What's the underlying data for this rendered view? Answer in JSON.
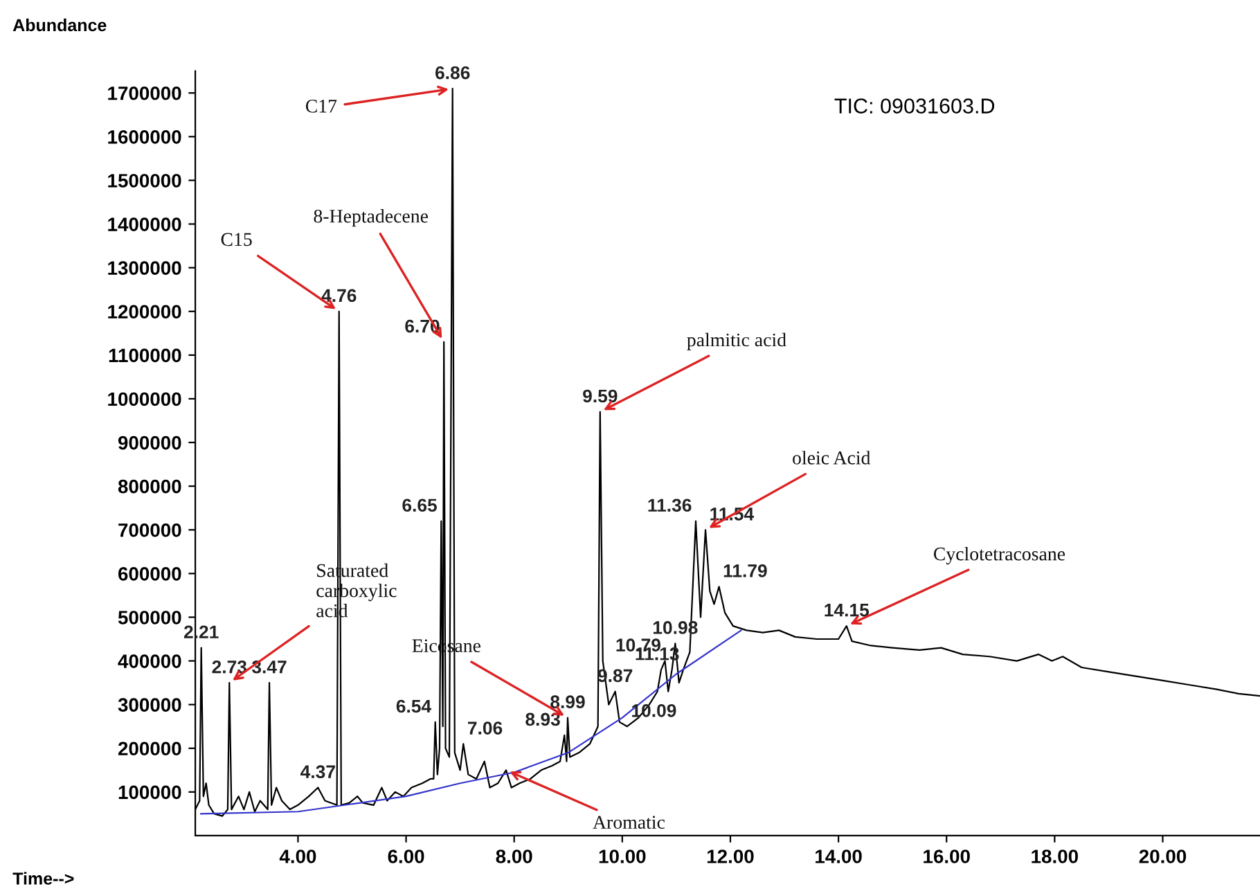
{
  "chart_data": {
    "type": "line",
    "title": "TIC: 09031603.D",
    "xlabel": "Time-->",
    "ylabel": "Abundance",
    "xlim": [
      2.1,
      21.8
    ],
    "ylim": [
      0,
      1750000
    ],
    "xticks": [
      {
        "value": 4,
        "label": "4.00"
      },
      {
        "value": 6,
        "label": "6.00"
      },
      {
        "value": 8,
        "label": "8.00"
      },
      {
        "value": 10,
        "label": "10.00"
      },
      {
        "value": 12,
        "label": "12.00"
      },
      {
        "value": 14,
        "label": "14.00"
      },
      {
        "value": 16,
        "label": "16.00"
      },
      {
        "value": 18,
        "label": "18.00"
      },
      {
        "value": 20,
        "label": "20.00"
      }
    ],
    "yticks": [
      100000,
      200000,
      300000,
      400000,
      500000,
      600000,
      700000,
      800000,
      900000,
      1000000,
      1100000,
      1200000,
      1300000,
      1400000,
      1500000,
      1600000,
      1700000
    ],
    "grid": false,
    "marker": "none",
    "series": [
      {
        "color": "#000000",
        "x": [
          2.1,
          2.18,
          2.21,
          2.25,
          2.3,
          2.35,
          2.45,
          2.6,
          2.7,
          2.73,
          2.77,
          2.9,
          3.0,
          3.1,
          3.2,
          3.3,
          3.44,
          3.47,
          3.51,
          3.6,
          3.7,
          3.85,
          4.0,
          4.2,
          4.37,
          4.5,
          4.72,
          4.76,
          4.8,
          4.95,
          5.1,
          5.2,
          5.4,
          5.55,
          5.65,
          5.8,
          5.95,
          6.1,
          6.3,
          6.45,
          6.51,
          6.54,
          6.58,
          6.62,
          6.65,
          6.68,
          6.7,
          6.73,
          6.8,
          6.86,
          6.9,
          7.0,
          7.06,
          7.15,
          7.3,
          7.45,
          7.55,
          7.7,
          7.85,
          7.95,
          8.1,
          8.3,
          8.5,
          8.7,
          8.85,
          8.93,
          8.97,
          8.99,
          9.03,
          9.2,
          9.4,
          9.55,
          9.59,
          9.64,
          9.75,
          9.87,
          9.95,
          10.09,
          10.3,
          10.5,
          10.65,
          10.72,
          10.79,
          10.85,
          10.92,
          10.98,
          11.05,
          11.13,
          11.25,
          11.36,
          11.45,
          11.54,
          11.62,
          11.7,
          11.79,
          11.9,
          12.05,
          12.3,
          12.6,
          12.9,
          13.2,
          13.6,
          14.0,
          14.15,
          14.25,
          14.6,
          15.0,
          15.5,
          15.9,
          16.3,
          16.8,
          17.3,
          17.7,
          17.95,
          18.15,
          18.5,
          19.0,
          19.5,
          20.0,
          20.5,
          21.0,
          21.4,
          21.8
        ],
        "values": [
          60000,
          80000,
          430000,
          90000,
          120000,
          70000,
          50000,
          45000,
          60000,
          350000,
          60000,
          90000,
          60000,
          100000,
          55000,
          80000,
          60000,
          350000,
          70000,
          110000,
          80000,
          60000,
          70000,
          90000,
          110000,
          80000,
          70000,
          1200000,
          70000,
          75000,
          90000,
          75000,
          70000,
          110000,
          80000,
          100000,
          90000,
          110000,
          120000,
          130000,
          130000,
          260000,
          140000,
          200000,
          720000,
          250000,
          1130000,
          200000,
          180000,
          1710000,
          190000,
          150000,
          210000,
          140000,
          130000,
          170000,
          110000,
          120000,
          150000,
          110000,
          120000,
          130000,
          150000,
          160000,
          170000,
          230000,
          170000,
          270000,
          180000,
          190000,
          210000,
          250000,
          970000,
          400000,
          300000,
          330000,
          260000,
          250000,
          270000,
          300000,
          330000,
          380000,
          400000,
          330000,
          380000,
          440000,
          350000,
          380000,
          420000,
          720000,
          500000,
          700000,
          560000,
          530000,
          570000,
          510000,
          480000,
          470000,
          465000,
          470000,
          455000,
          450000,
          450000,
          480000,
          445000,
          435000,
          430000,
          425000,
          430000,
          415000,
          410000,
          400000,
          415000,
          400000,
          410000,
          385000,
          375000,
          365000,
          355000,
          345000,
          335000,
          325000,
          320000
        ]
      },
      {
        "color": "#3333cc",
        "x": [
          2.2,
          4,
          6,
          7,
          8,
          9,
          10,
          11,
          12.2
        ],
        "values": [
          50000,
          55000,
          90000,
          120000,
          145000,
          190000,
          270000,
          370000,
          470000
        ]
      }
    ],
    "annotations": [
      {
        "text": "2.21",
        "x": 2.21,
        "y": 430000
      },
      {
        "text": "2.73",
        "x": 2.73,
        "y": 350000
      },
      {
        "text": "3.47",
        "x": 3.47,
        "y": 350000
      },
      {
        "text": "4.37",
        "x": 4.37,
        "y": 110000
      },
      {
        "text": "4.76",
        "x": 4.76,
        "y": 1200000
      },
      {
        "text": "6.54",
        "x": 6.54,
        "y": 260000
      },
      {
        "text": "6.65",
        "x": 6.65,
        "y": 720000
      },
      {
        "text": "6.70",
        "x": 6.7,
        "y": 1130000
      },
      {
        "text": "6.86",
        "x": 6.86,
        "y": 1710000
      },
      {
        "text": "7.06",
        "x": 7.06,
        "y": 210000
      },
      {
        "text": "8.93",
        "x": 8.93,
        "y": 230000
      },
      {
        "text": "8.99",
        "x": 8.99,
        "y": 270000
      },
      {
        "text": "9.59",
        "x": 9.59,
        "y": 970000
      },
      {
        "text": "9.87",
        "x": 9.87,
        "y": 330000
      },
      {
        "text": "10.09",
        "x": 10.09,
        "y": 250000
      },
      {
        "text": "10.79",
        "x": 10.79,
        "y": 400000
      },
      {
        "text": "10.98",
        "x": 10.98,
        "y": 440000
      },
      {
        "text": "11.13",
        "x": 11.13,
        "y": 380000
      },
      {
        "text": "11.36",
        "x": 11.36,
        "y": 720000
      },
      {
        "text": "11.54",
        "x": 11.54,
        "y": 700000
      },
      {
        "text": "11.79",
        "x": 11.79,
        "y": 570000
      },
      {
        "text": "14.15",
        "x": 14.15,
        "y": 480000
      },
      {
        "text": "C17",
        "x": 6.86,
        "y": 1710000
      },
      {
        "text": "8-Heptadecene",
        "x": 6.7,
        "y": 1130000
      },
      {
        "text": "C15",
        "x": 4.76,
        "y": 1200000
      },
      {
        "text": "Saturated\ncarboxylic\nacid",
        "x": 2.73,
        "y": 350000
      },
      {
        "text": "Eicosane",
        "x": 8.99,
        "y": 270000
      },
      {
        "text": "Aromatic",
        "x": 7.85,
        "y": 150000
      },
      {
        "text": "palmitic acid",
        "x": 9.59,
        "y": 970000
      },
      {
        "text": "oleic Acid",
        "x": 11.54,
        "y": 700000
      },
      {
        "text": "Cyclotetracosane",
        "x": 14.15,
        "y": 480000
      }
    ]
  }
}
